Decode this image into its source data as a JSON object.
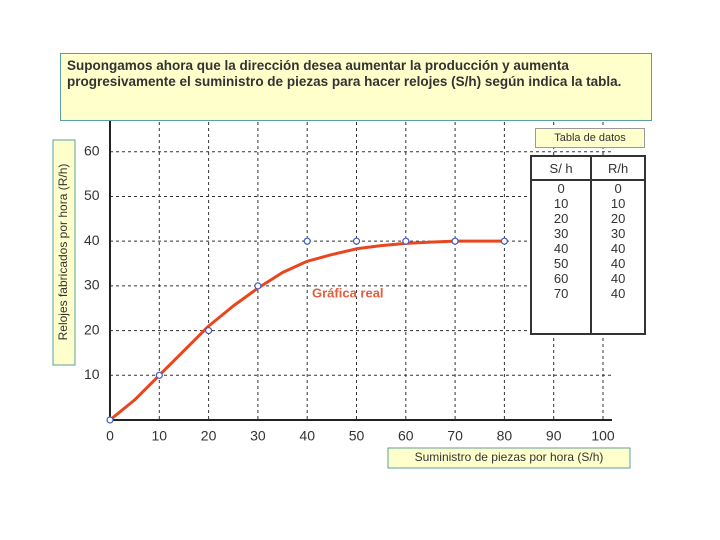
{
  "header": {
    "text": "Supongamos ahora que la dirección desea aumentar la producción y aumenta progresivamente el suministro de piezas para hacer relojes (S/h) según indica la tabla."
  },
  "chart_data": {
    "type": "line",
    "xlabel": "Suministro de piezas por hora (S/h)",
    "ylabel": "Relojes fabricados por hora (R/h)",
    "annotation": "Gráfica real",
    "xlim": [
      0,
      100
    ],
    "ylim": [
      0,
      68
    ],
    "xticks": [
      0,
      10,
      20,
      30,
      40,
      50,
      60,
      70,
      80,
      90,
      100
    ],
    "yticks": [
      10,
      20,
      30,
      40,
      50,
      60
    ],
    "grid": true,
    "series": [
      {
        "name": "Gráfica real",
        "color": "#e8461e",
        "x": [
          0,
          5,
          10,
          15,
          20,
          25,
          30,
          35,
          40,
          45,
          50,
          55,
          60,
          65,
          70,
          75,
          80
        ],
        "values": [
          0,
          4.5,
          10,
          15.5,
          21,
          25.5,
          29.5,
          33,
          35.5,
          37,
          38.3,
          39,
          39.5,
          39.8,
          40,
          40,
          40
        ]
      },
      {
        "color": "#3b5cc4",
        "marker": true,
        "x": [
          0,
          10,
          20,
          30,
          40,
          50,
          60,
          70,
          80
        ],
        "values": [
          0,
          10,
          20,
          30,
          40,
          40,
          40,
          40,
          40
        ]
      }
    ]
  },
  "table": {
    "title": "Tabla de datos",
    "columns": [
      "S/ h",
      "R/h"
    ],
    "rows": [
      [
        0,
        0
      ],
      [
        10,
        10
      ],
      [
        20,
        20
      ],
      [
        30,
        30
      ],
      [
        40,
        40
      ],
      [
        50,
        40
      ],
      [
        60,
        40
      ],
      [
        70,
        40
      ]
    ]
  }
}
